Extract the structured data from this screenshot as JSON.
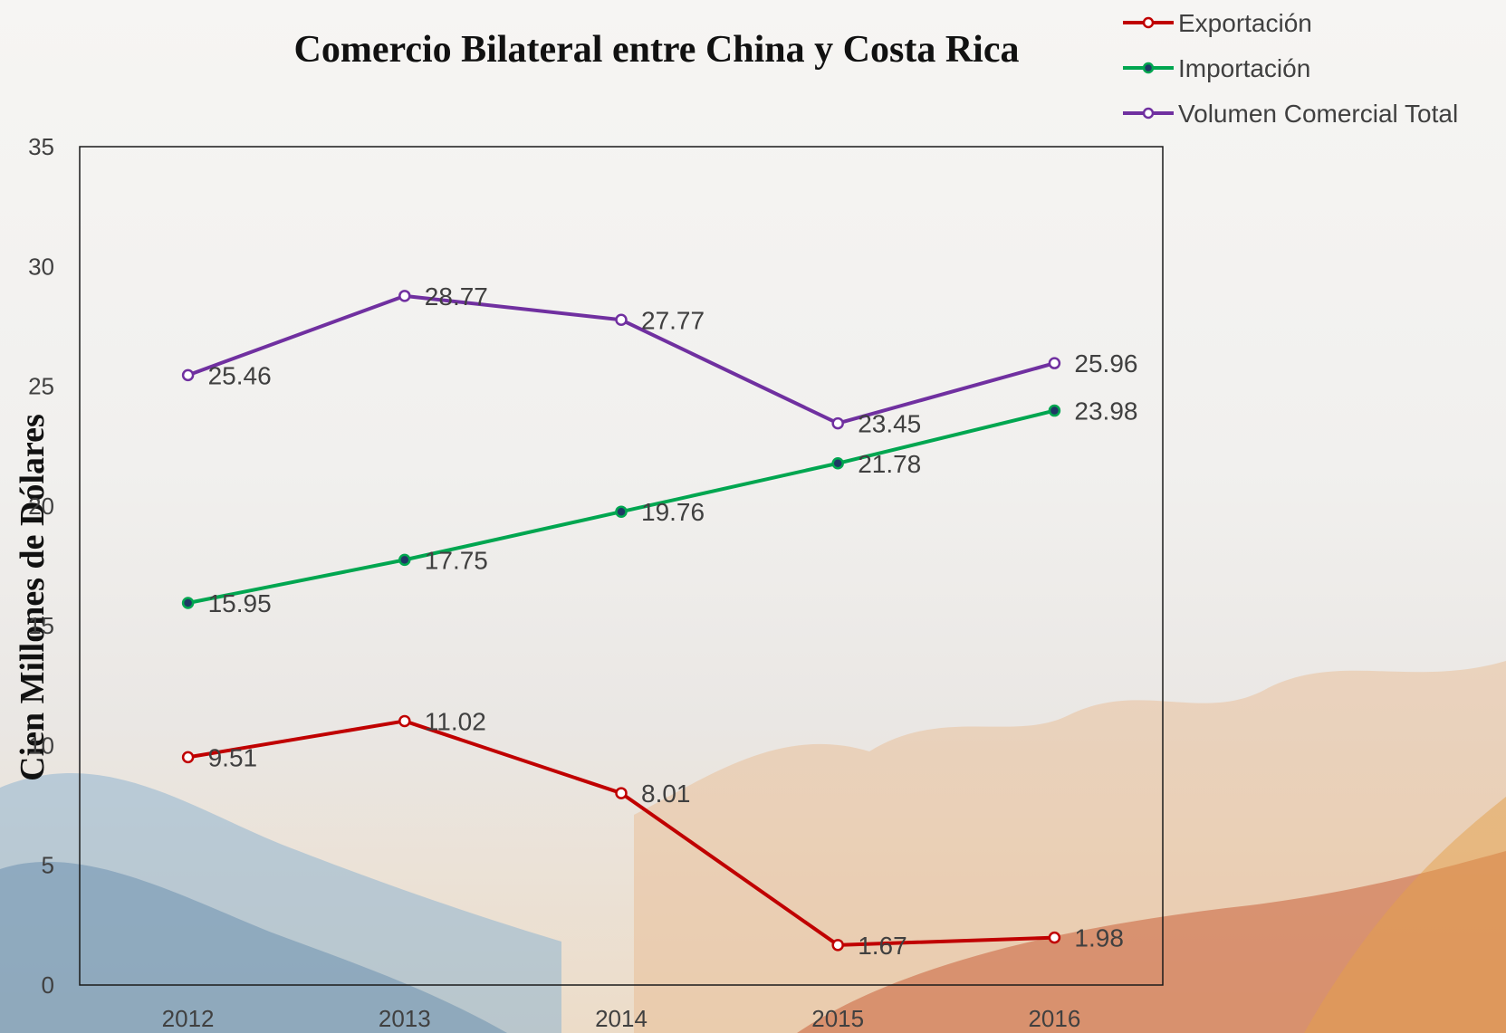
{
  "chart_data": {
    "type": "line",
    "title": "Comercio Bilateral entre China y Costa Rica",
    "xlabel": "",
    "ylabel": "Cien Millones de Dólares",
    "categories": [
      "2012",
      "2013",
      "2014",
      "2015",
      "2016"
    ],
    "ylim": [
      0,
      35
    ],
    "yticks": [
      "0",
      "5",
      "10",
      "15",
      "20",
      "25",
      "30",
      "35"
    ],
    "grid": false,
    "legend_position": "top-right",
    "series": [
      {
        "name": "Exportación",
        "color": "#c00000",
        "marker_fill": "#ffffff",
        "values": [
          9.51,
          11.02,
          8.01,
          1.67,
          1.98
        ],
        "labels": [
          "9.51",
          "11.02",
          "8.01",
          "1.67",
          "1.98"
        ]
      },
      {
        "name": "Importación",
        "color": "#00a650",
        "marker_fill": "#1f3864",
        "values": [
          15.95,
          17.75,
          19.76,
          21.78,
          23.98
        ],
        "labels": [
          "15.95",
          "17.75",
          "19.76",
          "21.78",
          "23.98"
        ]
      },
      {
        "name": "Volumen Comercial Total",
        "color": "#7030a0",
        "marker_fill": "#ffffff",
        "values": [
          25.46,
          28.77,
          27.77,
          23.45,
          25.96
        ],
        "labels": [
          "25.46",
          "28.77",
          "27.77",
          "23.45",
          "25.96"
        ]
      }
    ]
  }
}
